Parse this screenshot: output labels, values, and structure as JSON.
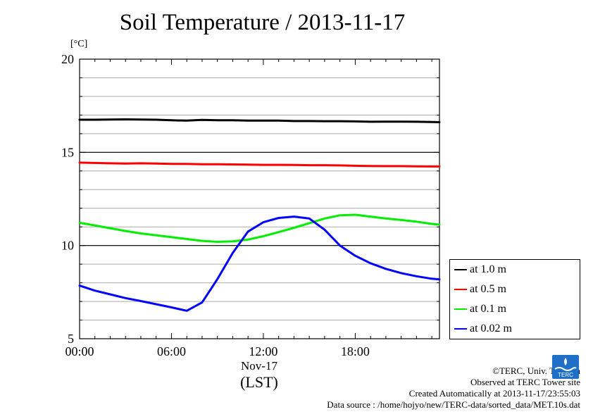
{
  "title": "Soil Temperature / 2013-11-17",
  "unit_label": "[°C]",
  "x_date_label": "Nov-17",
  "x_unit_label": "(LST)",
  "credits": {
    "copyright": "©TERC, Univ. Tsukuba",
    "observed": "Observed at TERC Tower site",
    "created": "Created Automatically at 2013-11-17/23:55:03",
    "source": "Data source : /home/hojyo/new/TERC-data/sorted_data/MET.10s.dat"
  },
  "logo_text": "TERC",
  "chart_data": {
    "type": "line",
    "title": "Soil Temperature / 2013-11-17",
    "xlabel": "(LST)",
    "ylabel": "[°C]",
    "xlim": [
      0,
      23.5
    ],
    "ylim": [
      5,
      20
    ],
    "x_ticks": [
      0,
      6,
      12,
      18
    ],
    "x_tick_labels": [
      "00:00",
      "06:00",
      "12:00",
      "18:00"
    ],
    "y_ticks": [
      5,
      10,
      15,
      20
    ],
    "y_tick_labels": [
      "5",
      "10",
      "15",
      "20"
    ],
    "grid": true,
    "legend_position": "right",
    "x": [
      0,
      1,
      2,
      3,
      4,
      5,
      6,
      7,
      8,
      9,
      10,
      11,
      12,
      13,
      14,
      15,
      16,
      17,
      18,
      19,
      20,
      21,
      22,
      23,
      23.5
    ],
    "series": [
      {
        "name": "at 1.0 m",
        "color": "#000000",
        "values": [
          16.75,
          16.75,
          16.76,
          16.77,
          16.76,
          16.75,
          16.72,
          16.7,
          16.74,
          16.72,
          16.72,
          16.7,
          16.7,
          16.7,
          16.68,
          16.68,
          16.67,
          16.67,
          16.66,
          16.64,
          16.65,
          16.65,
          16.64,
          16.63,
          16.62
        ]
      },
      {
        "name": "at 0.5 m",
        "color": "#ff0000",
        "values": [
          14.45,
          14.43,
          14.41,
          14.4,
          14.41,
          14.4,
          14.38,
          14.38,
          14.36,
          14.36,
          14.35,
          14.34,
          14.33,
          14.33,
          14.32,
          14.31,
          14.31,
          14.3,
          14.28,
          14.27,
          14.26,
          14.26,
          14.25,
          14.24,
          14.24
        ]
      },
      {
        "name": "at 0.1 m",
        "color": "#00ee00",
        "values": [
          11.22,
          11.08,
          10.93,
          10.78,
          10.65,
          10.55,
          10.45,
          10.35,
          10.25,
          10.2,
          10.22,
          10.32,
          10.5,
          10.72,
          10.95,
          11.2,
          11.45,
          11.62,
          11.65,
          11.55,
          11.45,
          11.37,
          11.28,
          11.16,
          11.12
        ]
      },
      {
        "name": "at 0.02 m",
        "color": "#0000ff",
        "values": [
          7.85,
          7.58,
          7.38,
          7.18,
          7.02,
          6.85,
          6.68,
          6.5,
          6.95,
          8.2,
          9.6,
          10.75,
          11.25,
          11.48,
          11.55,
          11.45,
          10.85,
          10.0,
          9.45,
          9.05,
          8.75,
          8.52,
          8.35,
          8.22,
          8.18
        ]
      }
    ]
  }
}
